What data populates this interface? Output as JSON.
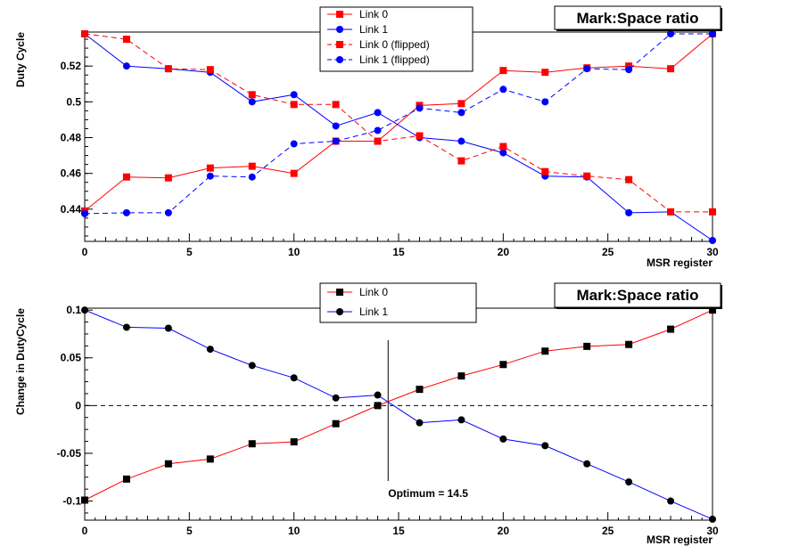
{
  "chart_data": [
    {
      "type": "line",
      "title": "Mark:Space ratio",
      "xlabel": "MSR register",
      "ylabel": "Duty Cycle",
      "xlim": [
        0,
        30
      ],
      "ylim": [
        0.422,
        0.539
      ],
      "x_ticks": [
        0,
        5,
        10,
        15,
        20,
        25,
        30
      ],
      "y_ticks": [
        0.44,
        0.46,
        0.48,
        0.5,
        0.52
      ],
      "y_tick_labels": [
        "0.44",
        "0.46",
        "0.48",
        "0.5",
        "0.52"
      ],
      "legend_position": "top-center",
      "x": [
        0,
        2,
        4,
        6,
        8,
        10,
        12,
        14,
        16,
        18,
        20,
        22,
        24,
        26,
        28,
        30
      ],
      "series": [
        {
          "name": "Link 0",
          "color": "#ff0000",
          "marker": "square",
          "dash": false,
          "values": [
            0.439,
            0.458,
            0.4575,
            0.463,
            0.464,
            0.46,
            0.478,
            0.478,
            0.498,
            0.499,
            0.5175,
            0.5165,
            0.519,
            0.52,
            0.5185,
            0.538
          ]
        },
        {
          "name": "Link 1",
          "color": "#0000ff",
          "marker": "circle",
          "dash": false,
          "values": [
            0.538,
            0.52,
            0.5185,
            0.5165,
            0.5,
            0.504,
            0.4865,
            0.494,
            0.48,
            0.478,
            0.4715,
            0.4585,
            0.458,
            0.438,
            0.4385,
            0.4225
          ]
        },
        {
          "name": "Link 0 (flipped)",
          "color": "#ff0000",
          "marker": "square",
          "dash": true,
          "values": [
            0.538,
            0.535,
            0.5185,
            0.518,
            0.504,
            0.4985,
            0.4985,
            0.478,
            0.481,
            0.467,
            0.475,
            0.461,
            0.4585,
            0.4565,
            0.4385,
            0.4385
          ]
        },
        {
          "name": "Link 1 (flipped)",
          "color": "#0000ff",
          "marker": "circle",
          "dash": true,
          "values": [
            0.4375,
            0.438,
            0.438,
            0.4585,
            0.458,
            0.4765,
            0.478,
            0.484,
            0.4965,
            0.494,
            0.507,
            0.5,
            0.5185,
            0.518,
            0.538,
            0.538
          ]
        }
      ]
    },
    {
      "type": "line",
      "title": "Mark:Space ratio",
      "xlabel": "MSR register",
      "ylabel": "Change in DutyCycle",
      "xlim": [
        0,
        30
      ],
      "ylim": [
        -0.12,
        0.102
      ],
      "x_ticks": [
        0,
        5,
        10,
        15,
        20,
        25,
        30
      ],
      "y_ticks": [
        -0.1,
        -0.05,
        0,
        0.05,
        0.1
      ],
      "y_tick_labels": [
        "-0.1",
        "-0.05",
        "0",
        "0.05",
        "0.1"
      ],
      "legend_position": "top-center",
      "reference_line": {
        "y": 0
      },
      "annotation": {
        "text": "Optimum =  14.5",
        "x": 14.5
      },
      "x": [
        0,
        2,
        4,
        6,
        8,
        10,
        12,
        14,
        16,
        18,
        20,
        22,
        24,
        26,
        28,
        30
      ],
      "series": [
        {
          "name": "Link 0",
          "color": "#ff0000",
          "marker_color": "#000000",
          "marker": "square",
          "dash": false,
          "values": [
            -0.099,
            -0.077,
            -0.061,
            -0.056,
            -0.04,
            -0.038,
            -0.019,
            0.0,
            0.017,
            0.031,
            0.043,
            0.057,
            0.062,
            0.064,
            0.08,
            0.1
          ]
        },
        {
          "name": "Link 1",
          "color": "#0000ff",
          "marker_color": "#000000",
          "marker": "circle",
          "dash": false,
          "values": [
            0.1,
            0.082,
            0.081,
            0.059,
            0.042,
            0.029,
            0.008,
            0.011,
            -0.018,
            -0.015,
            -0.035,
            -0.042,
            -0.061,
            -0.08,
            -0.1,
            -0.119
          ]
        }
      ]
    }
  ]
}
